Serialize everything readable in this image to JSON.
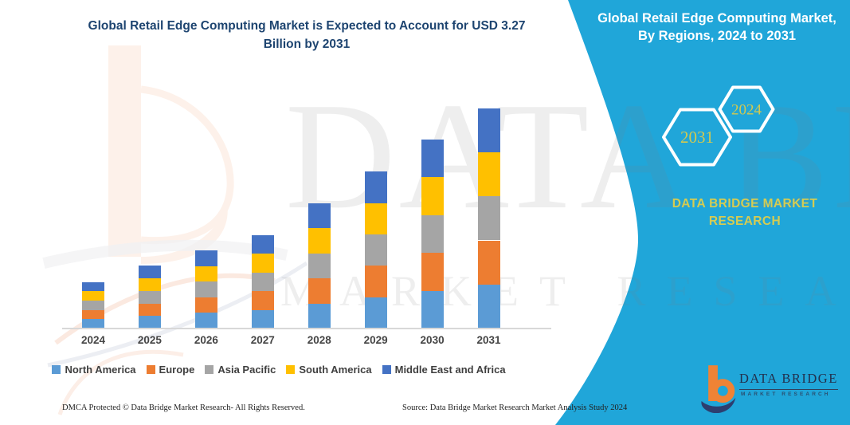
{
  "title": {
    "text": "Global Retail Edge Computing Market is Expected to Account for USD 3.27 Billion by 2031"
  },
  "chart_data": {
    "type": "bar",
    "stacked": true,
    "title": "Global Retail Edge Computing Market is Expected to Account for USD 3.27 Billion by 2031",
    "unit": "USD Billion",
    "categories": [
      "2024",
      "2025",
      "2026",
      "2027",
      "2028",
      "2029",
      "2030",
      "2031"
    ],
    "series": [
      {
        "name": "North America",
        "color": "#5B9BD5",
        "values": [
          0.138,
          0.186,
          0.232,
          0.278,
          0.372,
          0.466,
          0.562,
          0.654
        ]
      },
      {
        "name": "Europe",
        "color": "#ED7D31",
        "values": [
          0.138,
          0.186,
          0.232,
          0.278,
          0.372,
          0.466,
          0.562,
          0.654
        ]
      },
      {
        "name": "Asia Pacific",
        "color": "#A5A5A5",
        "values": [
          0.138,
          0.186,
          0.232,
          0.278,
          0.372,
          0.466,
          0.562,
          0.654
        ]
      },
      {
        "name": "South America",
        "color": "#FFC000",
        "values": [
          0.138,
          0.186,
          0.232,
          0.278,
          0.372,
          0.466,
          0.562,
          0.654
        ]
      },
      {
        "name": "Middle East and Africa",
        "color": "#4472C4",
        "values": [
          0.138,
          0.186,
          0.232,
          0.278,
          0.372,
          0.466,
          0.562,
          0.654
        ]
      }
    ],
    "totals": [
      0.69,
      0.93,
      1.16,
      1.39,
      1.86,
      2.33,
      2.81,
      3.27
    ],
    "ylim": [
      0,
      3.5
    ],
    "grid": false,
    "y_axis_visible": false,
    "legend_position": "bottom"
  },
  "side_panel": {
    "title": "Global Retail Edge Computing Market, By Regions, 2024 to 2031",
    "panel_color": "#20a6d9",
    "accent_text_color": "#d5cc52",
    "hexagons": [
      {
        "label": "2031"
      },
      {
        "label": "2024"
      }
    ],
    "brand_line1": "DATA BRIDGE MARKET",
    "brand_line2": "RESEARCH"
  },
  "logo": {
    "name": "DATA BRIDGE",
    "subtitle": "MARKET RESEARCH",
    "orange": "#ef8335",
    "navy": "#2d3e6f"
  },
  "watermark": {
    "line1": "DATA BRIDGE",
    "line2": "MARKET RESEARCH"
  },
  "footer": {
    "left": "DMCA Protected © Data Bridge Market Research-  All Rights Reserved.",
    "right": "Source: Data Bridge Market Research  Market Analysis Study 2024"
  }
}
